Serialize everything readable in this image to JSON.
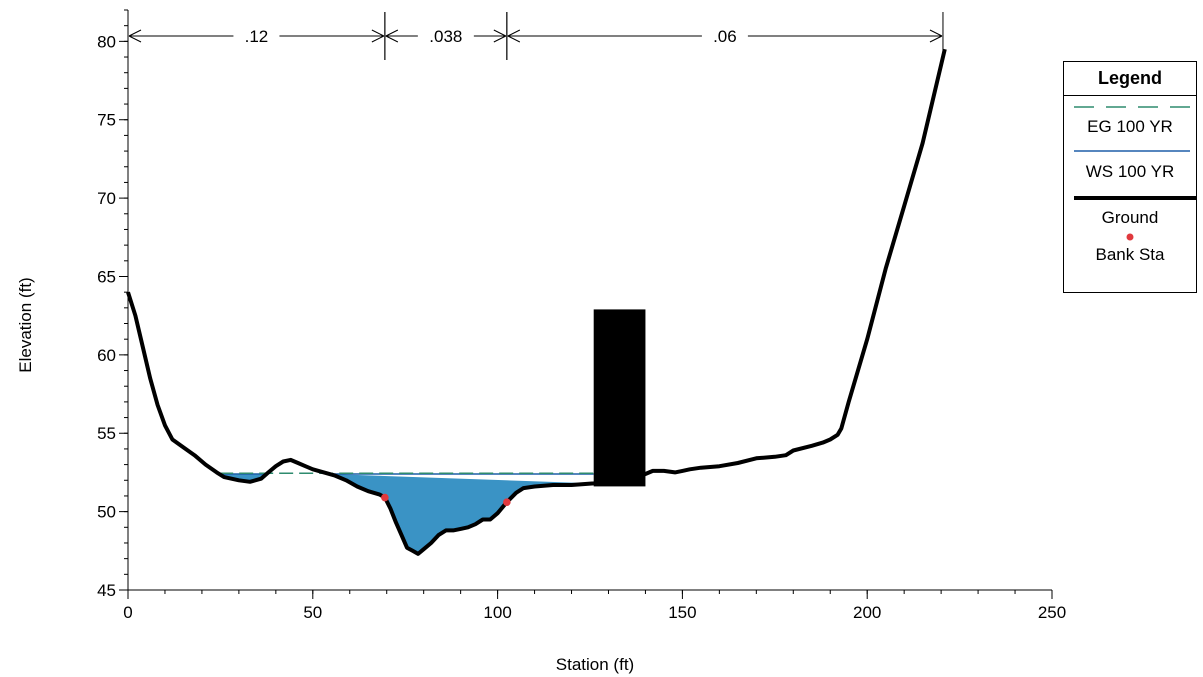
{
  "chart_data": {
    "type": "line",
    "xlabel": "Station (ft)",
    "ylabel": "Elevation (ft)",
    "xlim": [
      0,
      250
    ],
    "ylim": [
      45,
      82
    ],
    "x_ticks": [
      "0",
      "50",
      "100",
      "150",
      "200",
      "250"
    ],
    "y_ticks": [
      "45",
      "50",
      "55",
      "60",
      "65",
      "70",
      "75",
      "80"
    ],
    "grid": false,
    "legend_position": "right-top",
    "legend": {
      "title": "Legend",
      "entries": [
        "EG 100 YR",
        "WS 100 YR",
        "Ground",
        "Bank Sta"
      ]
    },
    "mannings_n": [
      {
        "label": ".12",
        "from": 0,
        "to": 69.5
      },
      {
        "label": ".038",
        "from": 69.5,
        "to": 102.5
      },
      {
        "label": ".06",
        "from": 102.5,
        "to": 220.5
      }
    ],
    "series": [
      {
        "name": "Ground",
        "color": "#000000",
        "x": [
          0,
          2,
          4,
          6,
          8,
          10,
          12,
          15,
          18,
          21,
          24,
          26,
          28,
          30,
          33,
          36,
          38,
          40,
          42,
          44,
          46,
          48,
          50,
          53,
          56,
          59,
          62,
          65,
          68,
          69.5,
          71,
          72.5,
          74,
          75.5,
          77,
          78.5,
          80,
          82,
          84,
          86,
          88,
          90,
          92,
          94,
          96,
          98,
          100,
          102.5,
          105,
          107,
          110,
          115,
          120,
          126,
          130,
          134,
          138,
          142,
          145,
          148,
          150,
          152,
          155,
          160,
          165,
          170,
          175,
          178,
          180,
          185,
          188,
          190,
          192,
          193,
          195,
          200,
          205,
          210,
          215,
          218,
          220,
          221
        ],
        "y": [
          64,
          62.5,
          60.5,
          58.5,
          56.8,
          55.5,
          54.6,
          54.1,
          53.6,
          53.0,
          52.5,
          52.2,
          52.1,
          52.0,
          51.9,
          52.1,
          52.5,
          52.9,
          53.2,
          53.3,
          53.1,
          52.9,
          52.7,
          52.5,
          52.3,
          52.0,
          51.6,
          51.3,
          51.1,
          50.9,
          50.2,
          49.3,
          48.5,
          47.7,
          47.5,
          47.3,
          47.6,
          48.0,
          48.5,
          48.8,
          48.8,
          48.9,
          49.0,
          49.2,
          49.5,
          49.5,
          49.9,
          50.6,
          51.2,
          51.5,
          51.6,
          51.7,
          51.7,
          51.8,
          51.9,
          52.0,
          52.2,
          52.6,
          52.6,
          52.5,
          52.6,
          52.7,
          52.8,
          52.9,
          53.1,
          53.4,
          53.5,
          53.6,
          53.9,
          54.2,
          54.4,
          54.6,
          54.9,
          55.3,
          57.0,
          61.0,
          65.5,
          69.5,
          73.5,
          76.5,
          78.5,
          79.5
        ]
      },
      {
        "name": "WS 100 YR",
        "color": "#1f5fa8",
        "fill": "#3a93c5",
        "level": 52.4
      },
      {
        "name": "EG 100 YR",
        "color": "#2e8b6e",
        "level": 52.45
      }
    ],
    "bank_stations": [
      {
        "x": 69.5,
        "y": 50.9
      },
      {
        "x": 102.5,
        "y": 50.6
      }
    ],
    "pier": {
      "x_from": 126,
      "x_to": 140,
      "y_top": 62.9
    }
  }
}
